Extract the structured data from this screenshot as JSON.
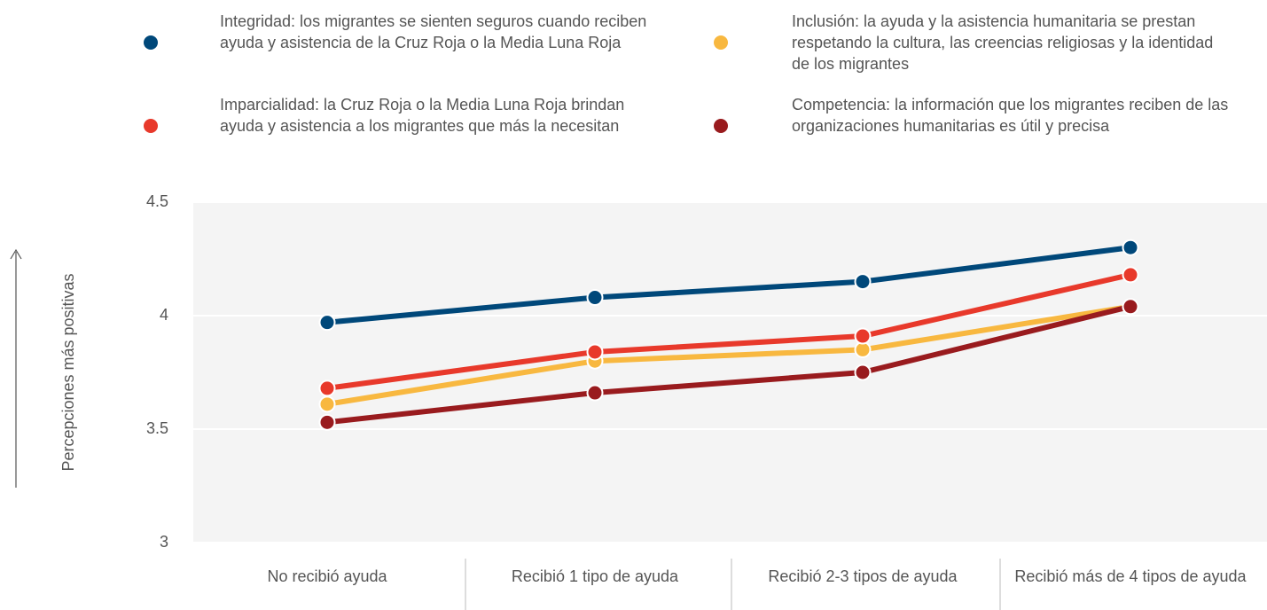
{
  "chart_data": {
    "type": "line",
    "y_label": "Percepciones más positivas",
    "categories": [
      "No recibió ayuda",
      "Recibió 1 tipo de ayuda",
      "Recibió 2-3 tipos de ayuda",
      "Recibió más de 4 tipos de ayuda"
    ],
    "series": [
      {
        "name": "Integridad: los migrantes se sienten seguros cuando reciben ayuda y asistencia de la Cruz Roja o la Media Luna Roja",
        "color": "#00487a",
        "values": [
          3.97,
          4.08,
          4.15,
          4.3
        ]
      },
      {
        "name": "Inclusión: la ayuda y la asistencia humanitaria se prestan respetando la cultura, las creencias religiosas y la identidad de los migrantes",
        "color": "#f8b840",
        "values": [
          3.61,
          3.8,
          3.85,
          4.04
        ]
      },
      {
        "name": "Imparcialidad: la Cruz Roja o la Media Luna Roja brindan ayuda y asistencia a los migrantes que más la necesitan",
        "color": "#e8392b",
        "values": [
          3.68,
          3.84,
          3.91,
          4.18
        ]
      },
      {
        "name": "Competencia: la información que los migrantes reciben de las organizaciones humanitarias es útil y precisa",
        "color": "#991b1e",
        "values": [
          3.53,
          3.66,
          3.75,
          4.04
        ]
      }
    ],
    "ylim": [
      3,
      4.5
    ],
    "yticks": [
      3,
      3.5,
      4,
      4.5
    ],
    "grid": true
  }
}
